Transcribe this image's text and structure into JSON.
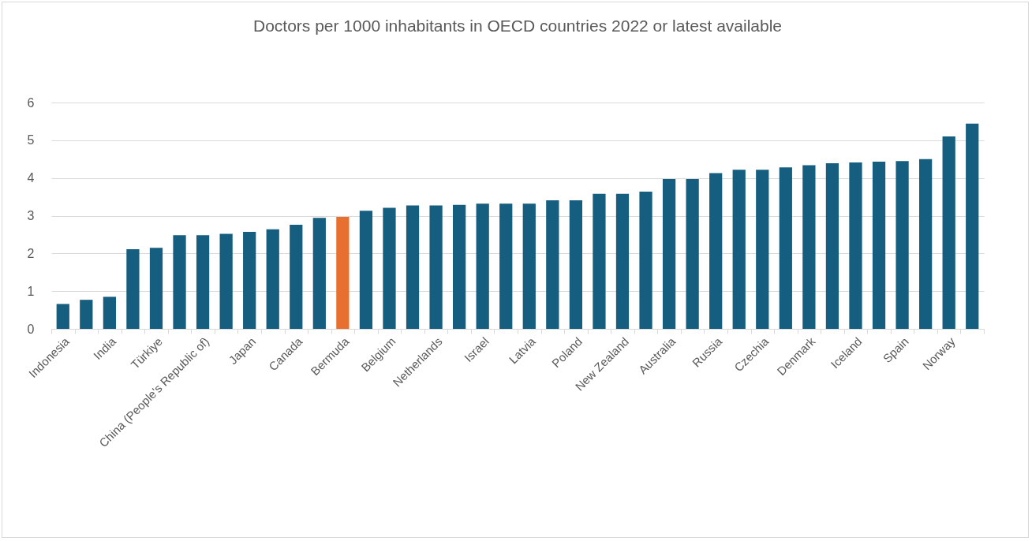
{
  "chart_data": {
    "type": "bar",
    "title": "Doctors per 1000 inhabitants in OECD countries 2022 or latest available",
    "categories": [
      "Indonesia",
      null,
      "India",
      null,
      "Türkiye",
      null,
      "China (People's Republic of)",
      null,
      "Japan",
      null,
      "Canada",
      null,
      "Bermuda",
      null,
      "Belgium",
      null,
      "Netherlands",
      null,
      "Israel",
      null,
      "Latvia",
      null,
      "Poland",
      null,
      "New Zealand",
      null,
      "Australia",
      null,
      "Russia",
      null,
      "Czechia",
      null,
      "Denmark",
      null,
      "Iceland",
      null,
      "Spain",
      null,
      "Norway",
      null
    ],
    "values": [
      0.66,
      0.77,
      0.85,
      2.11,
      2.15,
      2.48,
      2.48,
      2.52,
      2.57,
      2.64,
      2.76,
      2.94,
      2.97,
      3.13,
      3.21,
      3.27,
      3.27,
      3.29,
      3.32,
      3.32,
      3.32,
      3.41,
      3.41,
      3.58,
      3.58,
      3.64,
      3.97,
      3.97,
      4.13,
      4.22,
      4.22,
      4.28,
      4.34,
      4.39,
      4.41,
      4.43,
      4.45,
      4.5,
      5.1,
      5.44
    ],
    "colors": [
      "#155e7f",
      "#155e7f",
      "#155e7f",
      "#155e7f",
      "#155e7f",
      "#155e7f",
      "#155e7f",
      "#155e7f",
      "#155e7f",
      "#155e7f",
      "#155e7f",
      "#155e7f",
      "#e8702f",
      "#155e7f",
      "#155e7f",
      "#155e7f",
      "#155e7f",
      "#155e7f",
      "#155e7f",
      "#155e7f",
      "#155e7f",
      "#155e7f",
      "#155e7f",
      "#155e7f",
      "#155e7f",
      "#155e7f",
      "#155e7f",
      "#155e7f",
      "#155e7f",
      "#155e7f",
      "#155e7f",
      "#155e7f",
      "#155e7f",
      "#155e7f",
      "#155e7f",
      "#155e7f",
      "#155e7f",
      "#155e7f",
      "#155e7f",
      "#155e7f"
    ],
    "ylim": [
      0,
      6
    ],
    "yticks": [
      0,
      1,
      2,
      3,
      4,
      5,
      6
    ],
    "grid": "y"
  }
}
